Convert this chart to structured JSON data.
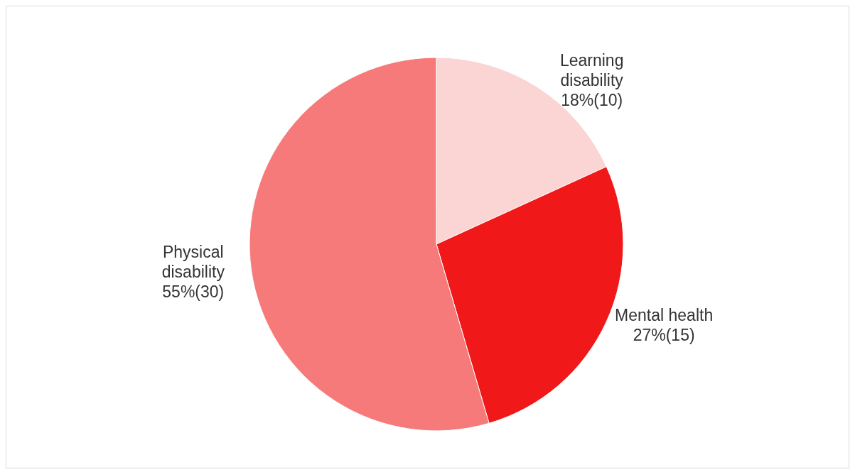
{
  "chart_data": {
    "type": "pie",
    "categories": [
      "Learning disability",
      "Mental health",
      "Physical disability"
    ],
    "values": [
      10,
      15,
      30
    ],
    "value_labels": [
      "18%(10)",
      "27%(15)",
      "55%(30)"
    ],
    "colors": [
      "#fbd4d4",
      "#f01818",
      "#f77a7a"
    ]
  }
}
